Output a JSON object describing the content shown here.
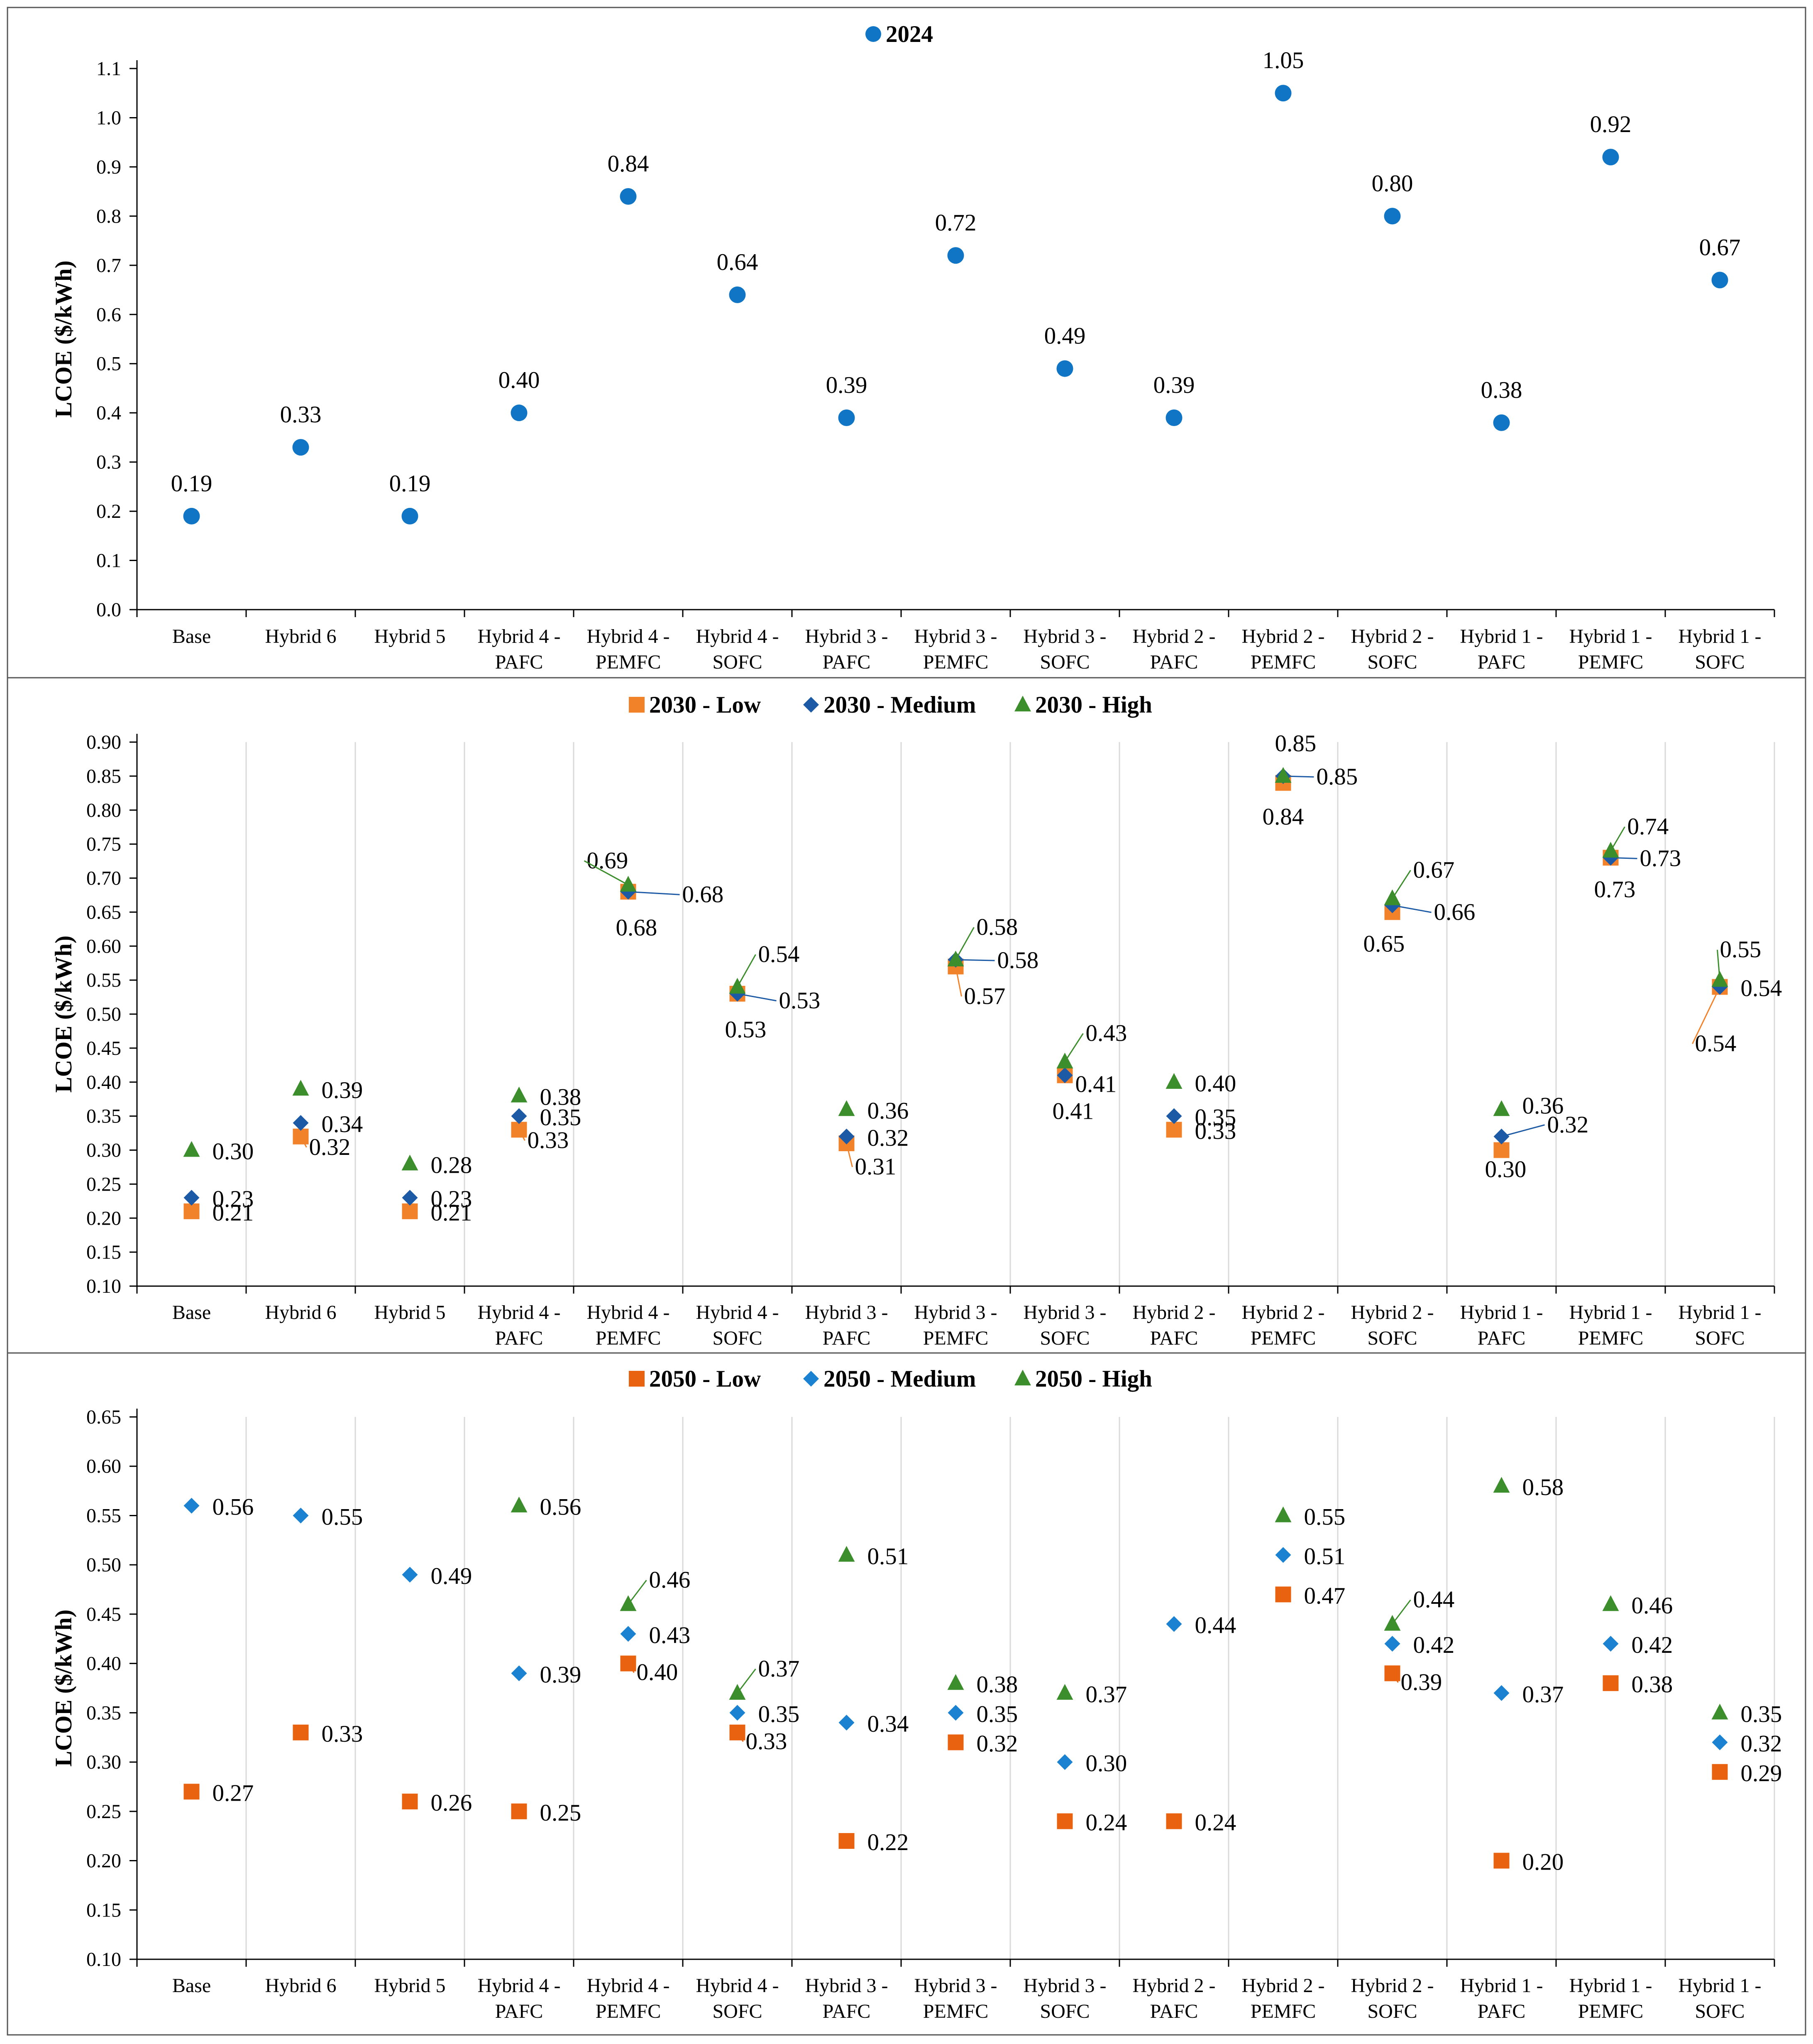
{
  "colors": {
    "y2024": "#0f75c4",
    "low2030": "#f1822a",
    "medium2030": "#1c5aa6",
    "high2030": "#3c8d2c",
    "low2050": "#e8620f",
    "medium2050": "#1a82d0",
    "high2050": "#3c8d2c",
    "axis": "#000000",
    "grid": "#d9d9d9",
    "panel_border": "#555555"
  },
  "chart_data": [
    {
      "type": "scatter",
      "legend": [
        {
          "name": "2024",
          "marker": "circle",
          "color_key": "y2024"
        }
      ],
      "ylabel": "LCOE ($/kWh)",
      "ylim": [
        0.0,
        1.1
      ],
      "yticks": [
        "0.0",
        "0.1",
        "0.2",
        "0.3",
        "0.4",
        "0.5",
        "0.6",
        "0.7",
        "0.8",
        "0.9",
        "1.0",
        "1.1"
      ],
      "vertical_grid": false,
      "categories": [
        [
          "Base"
        ],
        [
          "Hybrid 6"
        ],
        [
          "Hybrid 5"
        ],
        [
          "Hybrid 4 -",
          "PAFC"
        ],
        [
          "Hybrid 4 -",
          "PEMFC"
        ],
        [
          "Hybrid 4 -",
          "SOFC"
        ],
        [
          "Hybrid 3 -",
          "PAFC"
        ],
        [
          "Hybrid 3 -",
          "PEMFC"
        ],
        [
          "Hybrid 3 -",
          "SOFC"
        ],
        [
          "Hybrid 2 -",
          "PAFC"
        ],
        [
          "Hybrid 2 -",
          "PEMFC"
        ],
        [
          "Hybrid 2 -",
          "SOFC"
        ],
        [
          "Hybrid 1 -",
          "PAFC"
        ],
        [
          "Hybrid 1 -",
          "PEMFC"
        ],
        [
          "Hybrid 1 -",
          "SOFC"
        ]
      ],
      "series": [
        {
          "name": "2024",
          "marker": "circle",
          "color_key": "y2024",
          "values": [
            0.19,
            0.33,
            0.19,
            0.4,
            0.84,
            0.64,
            0.39,
            0.72,
            0.49,
            0.39,
            1.05,
            0.8,
            0.38,
            0.92,
            0.67
          ],
          "labels": [
            "0.19",
            "0.33",
            "0.19",
            "0.40",
            "0.84",
            "0.64",
            "0.39",
            "0.72",
            "0.49",
            "0.39",
            "1.05",
            "0.80",
            "0.38",
            "0.92",
            "0.67"
          ]
        }
      ]
    },
    {
      "type": "scatter",
      "legend": [
        {
          "name": "2030 - Low",
          "marker": "square",
          "color_key": "low2030"
        },
        {
          "name": "2030 - Medium",
          "marker": "diamond",
          "color_key": "medium2030"
        },
        {
          "name": "2030 - High",
          "marker": "triangle",
          "color_key": "high2030"
        }
      ],
      "ylabel": "LCOE ($/kWh)",
      "ylim": [
        0.1,
        0.9
      ],
      "yticks": [
        "0.10",
        "0.15",
        "0.20",
        "0.25",
        "0.30",
        "0.35",
        "0.40",
        "0.45",
        "0.50",
        "0.55",
        "0.60",
        "0.65",
        "0.70",
        "0.75",
        "0.80",
        "0.85",
        "0.90"
      ],
      "vertical_grid": true,
      "categories": [
        [
          "Base"
        ],
        [
          "Hybrid 6"
        ],
        [
          "Hybrid 5"
        ],
        [
          "Hybrid 4 -",
          "PAFC"
        ],
        [
          "Hybrid 4 -",
          "PEMFC"
        ],
        [
          "Hybrid 4 -",
          "SOFC"
        ],
        [
          "Hybrid 3 -",
          "PAFC"
        ],
        [
          "Hybrid 3 -",
          "PEMFC"
        ],
        [
          "Hybrid 3 -",
          "SOFC"
        ],
        [
          "Hybrid 2 -",
          "PAFC"
        ],
        [
          "Hybrid 2 -",
          "PEMFC"
        ],
        [
          "Hybrid 2 -",
          "SOFC"
        ],
        [
          "Hybrid 1 -",
          "PAFC"
        ],
        [
          "Hybrid 1 -",
          "PEMFC"
        ],
        [
          "Hybrid 1 -",
          "SOFC"
        ]
      ],
      "series": [
        {
          "name": "2030 - Low",
          "marker": "square",
          "color_key": "low2030",
          "values": [
            0.21,
            0.32,
            0.21,
            0.33,
            0.68,
            0.53,
            0.31,
            0.57,
            0.41,
            0.33,
            0.84,
            0.65,
            0.3,
            0.73,
            0.54
          ],
          "labels": [
            "0.21",
            "0.32",
            "0.21",
            "0.33",
            "0.68",
            "0.53",
            "0.31",
            "0.57",
            "0.41",
            "0.33",
            "0.84",
            "0.65",
            "0.30",
            "0.73",
            "0.54"
          ]
        },
        {
          "name": "2030 - Medium",
          "marker": "diamond",
          "color_key": "medium2030",
          "values": [
            0.23,
            0.34,
            0.23,
            0.35,
            0.68,
            0.53,
            0.32,
            0.58,
            0.41,
            0.35,
            0.85,
            0.66,
            0.32,
            0.73,
            0.54
          ],
          "labels": [
            "0.23",
            "0.34",
            "0.23",
            "0.35",
            "0.68",
            "0.53",
            "0.32",
            "0.58",
            "0.41",
            "0.35",
            "0.85",
            "0.66",
            "0.32",
            "0.73",
            "0.54"
          ]
        },
        {
          "name": "2030 - High",
          "marker": "triangle",
          "color_key": "high2030",
          "values": [
            0.3,
            0.39,
            0.28,
            0.38,
            0.69,
            0.54,
            0.36,
            0.58,
            0.43,
            0.4,
            0.85,
            0.67,
            0.36,
            0.74,
            0.55
          ],
          "labels": [
            "0.30",
            "0.39",
            "0.28",
            "0.38",
            "0.69",
            "0.54",
            "0.36",
            "0.58",
            "0.43",
            "0.40",
            "0.85",
            "0.67",
            "0.36",
            "0.74",
            "0.55"
          ]
        }
      ]
    },
    {
      "type": "scatter",
      "legend": [
        {
          "name": "2050 - Low",
          "marker": "square",
          "color_key": "low2050"
        },
        {
          "name": "2050 - Medium",
          "marker": "diamond",
          "color_key": "medium2050"
        },
        {
          "name": "2050 - High",
          "marker": "triangle",
          "color_key": "high2050"
        }
      ],
      "ylabel": "LCOE ($/kWh)",
      "ylim": [
        0.1,
        0.65
      ],
      "yticks": [
        "0.10",
        "0.15",
        "0.20",
        "0.25",
        "0.30",
        "0.35",
        "0.40",
        "0.45",
        "0.50",
        "0.55",
        "0.60",
        "0.65"
      ],
      "vertical_grid": true,
      "categories": [
        [
          "Base"
        ],
        [
          "Hybrid 6"
        ],
        [
          "Hybrid 5"
        ],
        [
          "Hybrid 4 -",
          "PAFC"
        ],
        [
          "Hybrid 4 -",
          "PEMFC"
        ],
        [
          "Hybrid 4 -",
          "SOFC"
        ],
        [
          "Hybrid 3 -",
          "PAFC"
        ],
        [
          "Hybrid 3 -",
          "PEMFC"
        ],
        [
          "Hybrid 3 -",
          "SOFC"
        ],
        [
          "Hybrid 2 -",
          "PAFC"
        ],
        [
          "Hybrid 2 -",
          "PEMFC"
        ],
        [
          "Hybrid 2 -",
          "SOFC"
        ],
        [
          "Hybrid 1 -",
          "PAFC"
        ],
        [
          "Hybrid 1 -",
          "PEMFC"
        ],
        [
          "Hybrid 1 -",
          "SOFC"
        ]
      ],
      "series": [
        {
          "name": "2050 - Low",
          "marker": "square",
          "color_key": "low2050",
          "values": [
            0.27,
            0.33,
            0.26,
            0.25,
            0.4,
            0.33,
            0.22,
            0.32,
            0.24,
            0.24,
            0.47,
            0.39,
            0.2,
            0.38,
            0.29
          ],
          "labels": [
            "0.27",
            "0.33",
            "0.26",
            "0.25",
            "0.40",
            "0.33",
            "0.22",
            "0.32",
            "0.24",
            "0.24",
            "0.47",
            "0.39",
            "0.20",
            "0.38",
            "0.29"
          ]
        },
        {
          "name": "2050 - Medium",
          "marker": "diamond",
          "color_key": "medium2050",
          "values": [
            0.56,
            0.55,
            0.49,
            0.39,
            0.43,
            0.35,
            0.34,
            0.35,
            0.3,
            0.44,
            0.51,
            0.42,
            0.37,
            0.42,
            0.32
          ],
          "labels": [
            "0.56",
            "0.55",
            "0.49",
            "0.39",
            "0.43",
            "0.35",
            "0.34",
            "0.35",
            "0.30",
            "0.44",
            "0.51",
            "0.42",
            "0.37",
            "0.42",
            "0.32"
          ]
        },
        {
          "name": "2050 - High",
          "marker": "triangle",
          "color_key": "high2050",
          "values": [
            null,
            null,
            null,
            0.56,
            0.46,
            0.37,
            0.51,
            0.38,
            0.37,
            null,
            0.55,
            0.44,
            0.58,
            0.46,
            0.35
          ],
          "labels": [
            null,
            null,
            null,
            "0.56",
            "0.46",
            "0.37",
            "0.51",
            "0.38",
            "0.37",
            null,
            "0.55",
            "0.44",
            "0.58",
            "0.46",
            "0.35"
          ]
        }
      ]
    }
  ]
}
